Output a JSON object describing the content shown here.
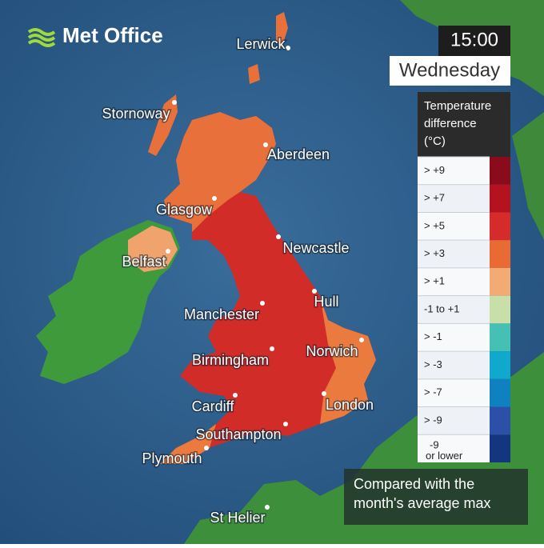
{
  "header": {
    "brand": "Met Office",
    "time": "15:00",
    "day": "Wednesday"
  },
  "legend": {
    "title": [
      "Temperature",
      "difference",
      "(°C)"
    ],
    "items": [
      {
        "label": "> +9",
        "color": "#8a0c1c"
      },
      {
        "label": "> +7",
        "color": "#b5121f"
      },
      {
        "label": "> +5",
        "color": "#d62b2b"
      },
      {
        "label": "> +3",
        "color": "#ea6a33"
      },
      {
        "label": "> +1",
        "color": "#f2ab74"
      },
      {
        "label": "-1 to +1",
        "color": "#c9dfa9"
      },
      {
        "label": "> -1",
        "color": "#46c0b4"
      },
      {
        "label": "> -3",
        "color": "#10a8cc"
      },
      {
        "label": "> -7",
        "color": "#0f80c0"
      },
      {
        "label": "> -9",
        "color": "#2c4fa8"
      },
      {
        "label": "-9",
        "sublabel": "or lower",
        "color": "#143580"
      }
    ]
  },
  "cities": [
    "Lerwick",
    "Stornoway",
    "Aberdeen",
    "Glasgow",
    "Belfast",
    "Newcastle",
    "Hull",
    "Manchester",
    "Norwich",
    "Birmingham",
    "Cardiff",
    "London",
    "Southampton",
    "Plymouth",
    "St Helier"
  ],
  "note": [
    "Compared with the",
    "month's average max"
  ]
}
